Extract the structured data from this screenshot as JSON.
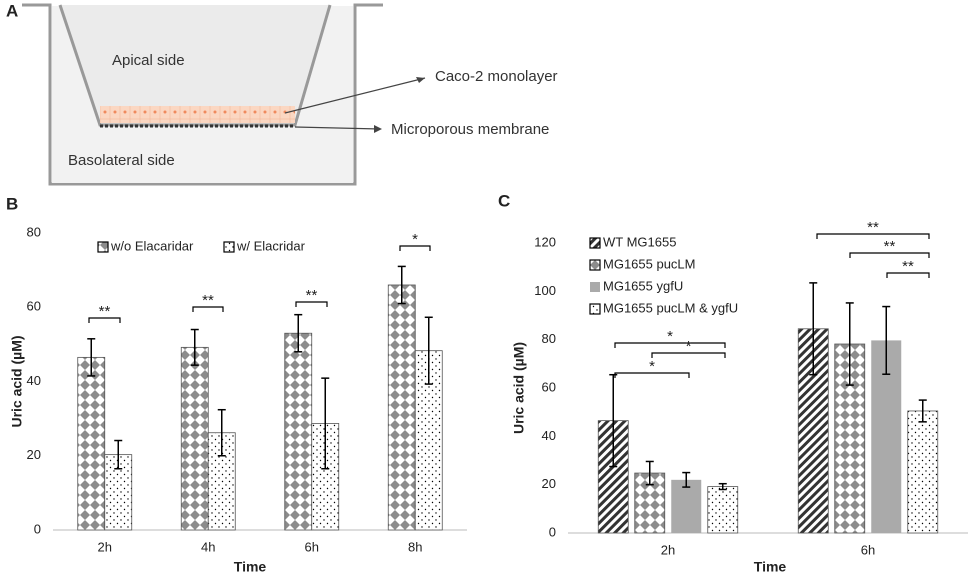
{
  "panels": [
    "A",
    "B",
    "C"
  ],
  "diagram": {
    "labels": [
      "Apical side",
      "Caco-2 monolayer",
      "Microporous membrane",
      "Basolateral side"
    ]
  },
  "chart_data": [
    {
      "type": "bar",
      "xlabel": "Time",
      "ylabel": "Uric acid (µM)",
      "categories": [
        "2h",
        "4h",
        "6h",
        "8h"
      ],
      "ylim": [
        0,
        80
      ],
      "yticks": [
        0,
        20,
        40,
        60,
        80
      ],
      "series": [
        {
          "name": "w/o Elacaridar",
          "color": "#8c8c8c",
          "pattern": "diamond",
          "values": [
            46.5,
            49.2,
            53,
            66
          ],
          "errors": [
            5,
            4.8,
            5,
            5
          ]
        },
        {
          "name": "w/ Elacridar",
          "color": "#000000",
          "pattern": "dots",
          "values": [
            20.3,
            26.2,
            28.7,
            48.3
          ],
          "errors": [
            3.8,
            6.2,
            12.2,
            9
          ]
        }
      ],
      "annotations": [
        "**",
        "**",
        "**",
        "*"
      ],
      "legend": "top"
    },
    {
      "type": "bar",
      "xlabel": "Time",
      "ylabel": "Uric acid (µM)",
      "categories": [
        "2h",
        "6h"
      ],
      "ylim": [
        0,
        120
      ],
      "yticks": [
        0,
        20,
        40,
        60,
        80,
        100,
        120
      ],
      "series": [
        {
          "name": "WT MG1655",
          "color": "#333333",
          "pattern": "hatch",
          "values": [
            46.5,
            84.5
          ],
          "errors": [
            19,
            19
          ]
        },
        {
          "name": "MG1655 pucLM",
          "color": "#8c8c8c",
          "pattern": "diamond",
          "values": [
            24.8,
            78.2
          ],
          "errors": [
            4.8,
            17
          ]
        },
        {
          "name": "MG1655 ygfU",
          "color": "#aaaaaa",
          "pattern": "solid",
          "values": [
            22,
            79.7
          ],
          "errors": [
            3,
            14
          ]
        },
        {
          "name": "MG1655 pucLM & ygfU",
          "color": "#000000",
          "pattern": "dots",
          "values": [
            19.2,
            50.5
          ],
          "errors": [
            1.2,
            4.5
          ]
        }
      ],
      "annotations": [
        "*",
        "*",
        "*",
        "**",
        "**",
        "**"
      ],
      "legend": "upper left"
    }
  ]
}
